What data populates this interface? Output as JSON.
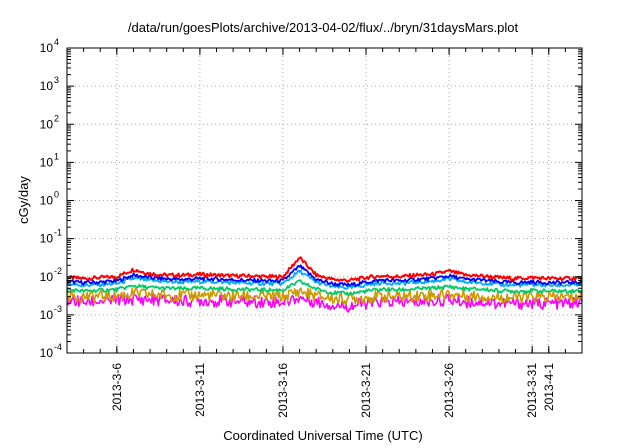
{
  "chart_data": {
    "type": "line",
    "title": "/data/run/goesPlots/archive/2013-04-02/flux/../bryn/31daysMars.plot",
    "xlabel": "Coordinated Universal Time (UTC)",
    "ylabel": "cGy/day",
    "y_scale": "log",
    "ylim": [
      0.0001,
      10000
    ],
    "xlim": [
      "2013-03-03",
      "2013-04-03"
    ],
    "grid": true,
    "x_ticks": [
      {
        "label": "2013-3-6",
        "date": "2013-03-06"
      },
      {
        "label": "2013-3-11",
        "date": "2013-03-11"
      },
      {
        "label": "2013-3-16",
        "date": "2013-03-16"
      },
      {
        "label": "2013-3-21",
        "date": "2013-03-21"
      },
      {
        "label": "2013-3-26",
        "date": "2013-03-26"
      },
      {
        "label": "2013-3-31",
        "date": "2013-03-31"
      },
      {
        "label": "2013-4-1",
        "date": "2013-04-01"
      }
    ],
    "y_ticks": [
      {
        "base": "10",
        "exp": "4",
        "value": 10000
      },
      {
        "base": "10",
        "exp": "3",
        "value": 1000
      },
      {
        "base": "10",
        "exp": "2",
        "value": 100
      },
      {
        "base": "10",
        "exp": "1",
        "value": 10
      },
      {
        "base": "10",
        "exp": "0",
        "value": 1
      },
      {
        "base": "10",
        "exp": "-1",
        "value": 0.1
      },
      {
        "base": "10",
        "exp": "-2",
        "value": 0.01
      },
      {
        "base": "10",
        "exp": "-3",
        "value": 0.001
      },
      {
        "base": "10",
        "exp": "-4",
        "value": 0.0001
      }
    ],
    "x_dates": [
      "2013-03-03",
      "2013-03-04",
      "2013-03-05",
      "2013-03-06",
      "2013-03-07",
      "2013-03-08",
      "2013-03-09",
      "2013-03-10",
      "2013-03-11",
      "2013-03-12",
      "2013-03-13",
      "2013-03-14",
      "2013-03-15",
      "2013-03-16",
      "2013-03-17",
      "2013-03-18",
      "2013-03-19",
      "2013-03-20",
      "2013-03-21",
      "2013-03-22",
      "2013-03-23",
      "2013-03-24",
      "2013-03-25",
      "2013-03-26",
      "2013-03-27",
      "2013-03-28",
      "2013-03-29",
      "2013-03-30",
      "2013-03-31",
      "2013-04-01",
      "2013-04-02",
      "2013-04-03"
    ],
    "series": [
      {
        "color": "#ff0000",
        "values": [
          0.0095,
          0.009,
          0.0095,
          0.01,
          0.0155,
          0.012,
          0.011,
          0.011,
          0.0115,
          0.011,
          0.0105,
          0.0105,
          0.01,
          0.01,
          0.032,
          0.011,
          0.0085,
          0.008,
          0.0095,
          0.0105,
          0.01,
          0.011,
          0.0115,
          0.014,
          0.011,
          0.0105,
          0.0095,
          0.009,
          0.0095,
          0.009,
          0.009,
          0.0095
        ]
      },
      {
        "color": "#0000ff",
        "values": [
          0.0075,
          0.007,
          0.0072,
          0.0078,
          0.011,
          0.0095,
          0.0088,
          0.0085,
          0.009,
          0.0087,
          0.0083,
          0.008,
          0.0078,
          0.0078,
          0.019,
          0.0085,
          0.0065,
          0.006,
          0.0072,
          0.0082,
          0.0078,
          0.0085,
          0.009,
          0.0105,
          0.0085,
          0.0082,
          0.0073,
          0.007,
          0.0073,
          0.007,
          0.007,
          0.0073
        ]
      },
      {
        "color": "#00aaff",
        "values": [
          0.0065,
          0.006,
          0.0062,
          0.0066,
          0.009,
          0.008,
          0.0075,
          0.0072,
          0.0076,
          0.0074,
          0.007,
          0.0068,
          0.0066,
          0.0066,
          0.014,
          0.0072,
          0.0055,
          0.0051,
          0.0061,
          0.007,
          0.0066,
          0.0072,
          0.0076,
          0.0088,
          0.0072,
          0.007,
          0.0062,
          0.006,
          0.0062,
          0.006,
          0.006,
          0.0062
        ]
      },
      {
        "color": "#00cc66",
        "values": [
          0.0046,
          0.0042,
          0.0044,
          0.0046,
          0.0058,
          0.0052,
          0.005,
          0.0048,
          0.005,
          0.0049,
          0.0047,
          0.0046,
          0.0045,
          0.0045,
          0.0075,
          0.0048,
          0.0038,
          0.0036,
          0.0042,
          0.0047,
          0.0045,
          0.0048,
          0.005,
          0.0055,
          0.0048,
          0.0047,
          0.0043,
          0.0042,
          0.0043,
          0.0042,
          0.0042,
          0.0043
        ]
      },
      {
        "color": "#cc9900",
        "values": [
          0.0032,
          0.003,
          0.0031,
          0.0032,
          0.0036,
          0.0034,
          0.0033,
          0.0032,
          0.0033,
          0.0032,
          0.0031,
          0.0031,
          0.003,
          0.003,
          0.0042,
          0.0031,
          0.0027,
          0.0026,
          0.0029,
          0.0031,
          0.003,
          0.0032,
          0.0033,
          0.0035,
          0.0032,
          0.0031,
          0.0029,
          0.0029,
          0.0029,
          0.0029,
          0.0029,
          0.003
        ]
      },
      {
        "color": "#ff00ff",
        "values": [
          0.0024,
          0.0022,
          0.0023,
          0.0024,
          0.0026,
          0.0025,
          0.0024,
          0.0023,
          0.0024,
          0.0023,
          0.0023,
          0.0022,
          0.0022,
          0.0022,
          0.0028,
          0.0022,
          0.0018,
          0.0017,
          0.002,
          0.0022,
          0.0021,
          0.0022,
          0.0023,
          0.0025,
          0.0022,
          0.0022,
          0.002,
          0.002,
          0.002,
          0.002,
          0.002,
          0.0021
        ]
      }
    ]
  }
}
